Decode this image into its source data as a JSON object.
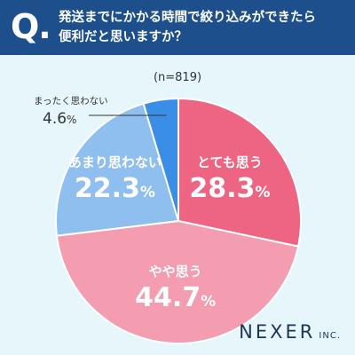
{
  "header": {
    "q_mark": "Q.",
    "question_line1": "発送までにかかる時間で絞り込みができたら",
    "question_line2": "便利だと思いますか？"
  },
  "sample_note": "(n=819)",
  "brand": {
    "name": "NEXER",
    "suffix": "INC."
  },
  "chart_data": {
    "type": "pie",
    "title": "",
    "start": "12 o'clock, clockwise",
    "slices": [
      {
        "label": "とても思う",
        "value": 28.3,
        "display": "28.3",
        "color": "#ee6583",
        "text_color": "#ffffff",
        "label_inside": true
      },
      {
        "label": "やや思う",
        "value": 44.7,
        "display": "44.7",
        "color": "#f59db0",
        "text_color": "#ffffff",
        "label_inside": true
      },
      {
        "label": "あまり思わない",
        "value": 22.3,
        "display": "22.3",
        "color": "#8fbfee",
        "text_color": "#ffffff",
        "label_inside": true
      },
      {
        "label": "まったく思わない",
        "value": 4.6,
        "display": "4.6",
        "color": "#3b8ee6",
        "text_color": "#333333",
        "label_inside": false
      }
    ],
    "unit": "%"
  }
}
